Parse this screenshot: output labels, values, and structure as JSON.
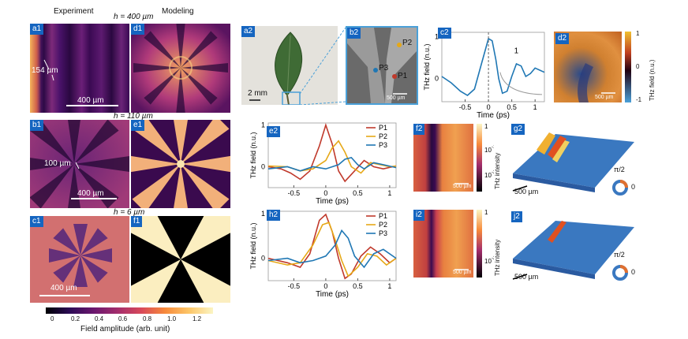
{
  "headers": {
    "experiment": "Experiment",
    "modeling": "Modeling"
  },
  "heights": {
    "h1": "h = 400 µm",
    "h2": "h = 110 µm",
    "h3": "h = 6 µm"
  },
  "labels": {
    "a1": "a1",
    "d1": "d1",
    "b1": "b1",
    "e1": "e1",
    "c1": "c1",
    "f1": "f1",
    "a2": "a2",
    "b2": "b2",
    "c2": "c2",
    "d2": "d2",
    "e2": "e2",
    "f2": "f2",
    "g2": "g2",
    "h2": "h2",
    "i2": "i2",
    "j2": "j2"
  },
  "annotations": {
    "a1_feature": "154 µm",
    "a1_scale": "400 µm",
    "b1_feature": "100 µm",
    "b1_scale": "400 µm",
    "c1_scale": "400 µm",
    "a2_scale": "2 mm",
    "b2_scale": "500 µm",
    "d2_scale": "500 µm",
    "f2_scale": "500 µm",
    "i2_scale": "500 µm",
    "g2_scale": "500 µm",
    "j2_scale": "500 µm",
    "phase_label": "π/2",
    "phase_zero": "0",
    "c2_marker": "1"
  },
  "points": {
    "p1": "P1",
    "p2": "P2",
    "p3": "P3"
  },
  "colorbar_main": {
    "ticks": [
      "0",
      "0.2",
      "0.4",
      "0.6",
      "0.8",
      "1.0",
      "1.2"
    ],
    "label": "Field amplitude (arb. unit)"
  },
  "colorbar_d2": {
    "ticks": [
      "1",
      "0",
      "-1"
    ],
    "label": "THz field (n.u.)"
  },
  "colorbar_f2": {
    "label": "THz intensity"
  },
  "colorbar_i2": {
    "label": "THz intensity"
  },
  "colors": {
    "badge": "#1565c0",
    "p1": "#c0392b",
    "p2": "#e6a817",
    "p3": "#1f77b4",
    "c2_line": "#1f77b4"
  },
  "chart_data": [
    {
      "id": "c2",
      "type": "line",
      "xlabel": "Time (ps)",
      "ylabel": "THz field (n.u.)",
      "xlim": [
        -1,
        1.2
      ],
      "ylim": [
        -0.55,
        1.1
      ],
      "xticks": [
        "-0.5",
        "0",
        "0.5",
        "1"
      ],
      "yticks": [
        "0",
        "1"
      ],
      "series": [
        {
          "x": [
            -1.0,
            -0.8,
            -0.6,
            -0.45,
            -0.3,
            -0.15,
            0.0,
            0.08,
            0.16,
            0.22,
            0.3,
            0.4,
            0.5,
            0.6,
            0.7,
            0.8,
            0.9,
            1.0,
            1.1,
            1.2
          ],
          "y": [
            0.05,
            -0.1,
            -0.3,
            -0.4,
            -0.25,
            0.35,
            0.95,
            0.9,
            0.45,
            0.0,
            -0.35,
            -0.3,
            0.05,
            0.35,
            0.3,
            0.05,
            0.12,
            0.25,
            0.2,
            0.15
          ]
        }
      ]
    },
    {
      "id": "e2",
      "type": "line",
      "xlabel": "Time (ps)",
      "ylabel": "THz field (n.u.)",
      "xlim": [
        -0.9,
        1.1
      ],
      "ylim": [
        -0.5,
        1.05
      ],
      "xticks": [
        "-0.5",
        "0",
        "0.5",
        "1"
      ],
      "yticks": [
        "0",
        "1"
      ],
      "series": [
        {
          "name": "P1",
          "x": [
            -0.9,
            -0.7,
            -0.55,
            -0.4,
            -0.25,
            -0.1,
            0.0,
            0.1,
            0.2,
            0.3,
            0.45,
            0.6,
            0.75,
            0.9,
            1.1
          ],
          "y": [
            0.0,
            -0.05,
            -0.15,
            -0.3,
            -0.1,
            0.5,
            1.0,
            0.55,
            -0.1,
            -0.35,
            -0.1,
            0.15,
            0.0,
            -0.05,
            0.02
          ]
        },
        {
          "name": "P2",
          "x": [
            -0.9,
            -0.6,
            -0.4,
            -0.2,
            0.0,
            0.1,
            0.2,
            0.3,
            0.4,
            0.55,
            0.7,
            0.85,
            1.0,
            1.1
          ],
          "y": [
            0.02,
            0.0,
            -0.1,
            -0.05,
            0.15,
            0.45,
            0.62,
            0.35,
            0.0,
            -0.15,
            0.1,
            0.05,
            0.0,
            0.02
          ]
        },
        {
          "name": "P3",
          "x": [
            -0.9,
            -0.6,
            -0.4,
            -0.2,
            0.0,
            0.2,
            0.3,
            0.4,
            0.5,
            0.6,
            0.75,
            0.9,
            1.1
          ],
          "y": [
            -0.05,
            0.0,
            -0.1,
            0.0,
            -0.05,
            0.05,
            0.18,
            0.22,
            0.05,
            -0.05,
            0.1,
            0.05,
            -0.02
          ]
        }
      ]
    },
    {
      "id": "h2",
      "type": "line",
      "xlabel": "Time (ps)",
      "ylabel": "THz field (n.u.)",
      "xlim": [
        -0.9,
        1.1
      ],
      "ylim": [
        -0.5,
        1.05
      ],
      "xticks": [
        "-0.5",
        "0",
        "0.5",
        "1"
      ],
      "yticks": [
        "0",
        "1"
      ],
      "series": [
        {
          "name": "P1",
          "x": [
            -0.9,
            -0.6,
            -0.4,
            -0.25,
            -0.1,
            0.0,
            0.1,
            0.2,
            0.3,
            0.4,
            0.55,
            0.7,
            0.85,
            1.0,
            1.1
          ],
          "y": [
            0.0,
            -0.1,
            -0.2,
            0.1,
            0.85,
            0.98,
            0.6,
            0.0,
            -0.45,
            -0.35,
            0.05,
            0.25,
            0.1,
            -0.1,
            0.0
          ]
        },
        {
          "name": "P2",
          "x": [
            -0.9,
            -0.6,
            -0.4,
            -0.2,
            -0.05,
            0.05,
            0.15,
            0.25,
            0.35,
            0.5,
            0.65,
            0.8,
            0.95,
            1.1
          ],
          "y": [
            -0.05,
            -0.15,
            -0.1,
            0.3,
            0.75,
            0.8,
            0.4,
            -0.05,
            -0.4,
            -0.2,
            0.1,
            0.05,
            -0.15,
            0.0
          ]
        },
        {
          "name": "P3",
          "x": [
            -0.9,
            -0.6,
            -0.4,
            -0.2,
            0.0,
            0.15,
            0.25,
            0.35,
            0.45,
            0.6,
            0.75,
            0.9,
            1.1
          ],
          "y": [
            -0.05,
            0.0,
            -0.1,
            -0.05,
            0.05,
            0.3,
            0.62,
            0.45,
            0.05,
            -0.2,
            0.1,
            0.2,
            0.0
          ]
        }
      ]
    }
  ]
}
